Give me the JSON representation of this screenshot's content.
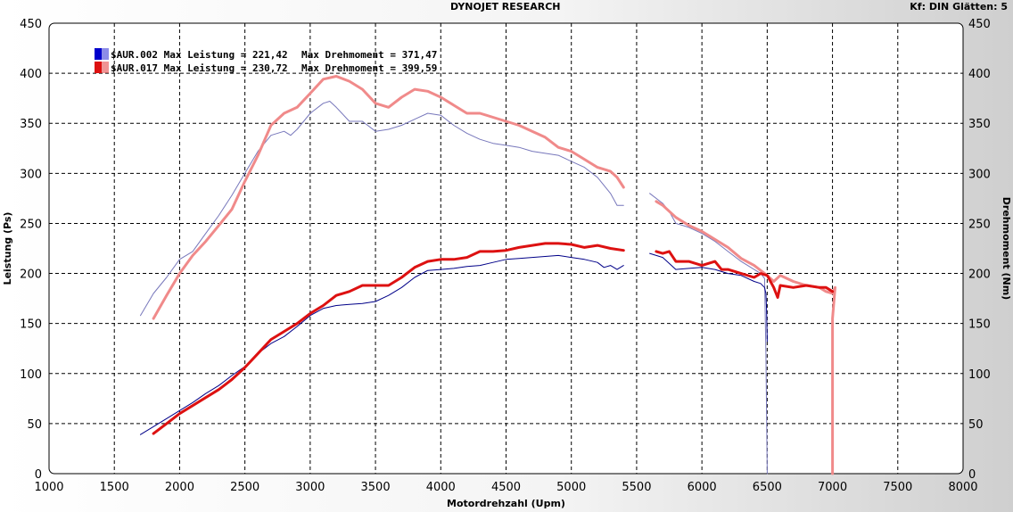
{
  "header": {
    "title": "DYNOJET RESEARCH",
    "right_info": "Kf: DIN  Glätten: 5"
  },
  "chart_data": {
    "type": "line",
    "title": "DYNOJET RESEARCH",
    "xlabel": "Motordrehzahl (Upm)",
    "ylabel_left": "Leistung (Ps)",
    "ylabel_right": "Drehmoment (Nm)",
    "xlim": [
      1000,
      8000
    ],
    "ylim": [
      0,
      450
    ],
    "x_ticks": [
      1000,
      1500,
      2000,
      2500,
      3000,
      3500,
      4000,
      4500,
      5000,
      5500,
      6000,
      6500,
      7000,
      7500,
      8000
    ],
    "y_ticks": [
      0,
      50,
      100,
      150,
      200,
      250,
      300,
      350,
      400,
      450
    ],
    "grid": true,
    "legend": [
      {
        "label": "$AUR.002 Max Leistung = 221,42",
        "label2": "Max Drehmoment = 371,47",
        "color": "#0000cc"
      },
      {
        "label": "$AUR.017 Max Leistung = 230,72",
        "label2": "Max Drehmoment = 399,59",
        "color": "#dd1111"
      }
    ],
    "series": [
      {
        "name": "$AUR.002",
        "quantity": "Drehmoment",
        "color": "#7777bb",
        "width": 1,
        "points": [
          [
            1700,
            158
          ],
          [
            1800,
            180
          ],
          [
            1900,
            196
          ],
          [
            2000,
            214
          ],
          [
            2100,
            222
          ],
          [
            2200,
            240
          ],
          [
            2300,
            258
          ],
          [
            2400,
            278
          ],
          [
            2500,
            300
          ],
          [
            2600,
            322
          ],
          [
            2700,
            338
          ],
          [
            2800,
            342
          ],
          [
            2850,
            338
          ],
          [
            2900,
            344
          ],
          [
            3000,
            360
          ],
          [
            3100,
            370
          ],
          [
            3150,
            372
          ],
          [
            3200,
            366
          ],
          [
            3300,
            352
          ],
          [
            3400,
            352
          ],
          [
            3500,
            342
          ],
          [
            3600,
            344
          ],
          [
            3700,
            348
          ],
          [
            3800,
            354
          ],
          [
            3900,
            360
          ],
          [
            4000,
            358
          ],
          [
            4100,
            348
          ],
          [
            4200,
            340
          ],
          [
            4300,
            334
          ],
          [
            4400,
            330
          ],
          [
            4500,
            328
          ],
          [
            4600,
            326
          ],
          [
            4700,
            322
          ],
          [
            4800,
            320
          ],
          [
            4900,
            318
          ],
          [
            5000,
            312
          ],
          [
            5100,
            306
          ],
          [
            5200,
            296
          ],
          [
            5300,
            280
          ],
          [
            5350,
            268
          ],
          [
            5400,
            268
          ]
        ]
      },
      {
        "name": "$AUR.002",
        "quantity": "Drehmoment",
        "color": "#7777bb",
        "width": 1,
        "points": [
          [
            5600,
            280
          ],
          [
            5700,
            270
          ],
          [
            5750,
            262
          ],
          [
            5800,
            250
          ],
          [
            5900,
            246
          ],
          [
            6000,
            240
          ],
          [
            6100,
            232
          ],
          [
            6200,
            222
          ],
          [
            6300,
            212
          ],
          [
            6400,
            204
          ],
          [
            6450,
            200
          ],
          [
            6480,
            195
          ],
          [
            6490,
            120
          ],
          [
            6500,
            0
          ]
        ]
      },
      {
        "name": "$AUR.002",
        "quantity": "Leistung",
        "color": "#000088",
        "width": 1,
        "points": [
          [
            1700,
            39
          ],
          [
            1800,
            47
          ],
          [
            1900,
            55
          ],
          [
            2000,
            63
          ],
          [
            2100,
            71
          ],
          [
            2200,
            80
          ],
          [
            2300,
            88
          ],
          [
            2400,
            98
          ],
          [
            2500,
            107
          ],
          [
            2600,
            120
          ],
          [
            2700,
            130
          ],
          [
            2800,
            137
          ],
          [
            2900,
            147
          ],
          [
            3000,
            158
          ],
          [
            3100,
            165
          ],
          [
            3200,
            168
          ],
          [
            3300,
            169
          ],
          [
            3400,
            170
          ],
          [
            3500,
            172
          ],
          [
            3600,
            178
          ],
          [
            3700,
            186
          ],
          [
            3800,
            196
          ],
          [
            3900,
            203
          ],
          [
            4000,
            204
          ],
          [
            4100,
            205
          ],
          [
            4200,
            207
          ],
          [
            4300,
            208
          ],
          [
            4400,
            211
          ],
          [
            4500,
            214
          ],
          [
            4600,
            215
          ],
          [
            4700,
            216
          ],
          [
            4800,
            217
          ],
          [
            4900,
            218
          ],
          [
            5000,
            216
          ],
          [
            5100,
            214
          ],
          [
            5200,
            211
          ],
          [
            5250,
            206
          ],
          [
            5300,
            208
          ],
          [
            5350,
            204
          ],
          [
            5400,
            208
          ]
        ]
      },
      {
        "name": "$AUR.002",
        "quantity": "Leistung",
        "color": "#000088",
        "width": 1,
        "points": [
          [
            5600,
            220
          ],
          [
            5700,
            216
          ],
          [
            5800,
            204
          ],
          [
            5900,
            205
          ],
          [
            6000,
            206
          ],
          [
            6100,
            204
          ],
          [
            6200,
            200
          ],
          [
            6300,
            198
          ],
          [
            6400,
            192
          ],
          [
            6450,
            190
          ],
          [
            6480,
            186
          ],
          [
            6490,
            180
          ],
          [
            6495,
            165
          ],
          [
            6500,
            132
          ]
        ]
      },
      {
        "name": "$AUR.017",
        "quantity": "Drehmoment",
        "color": "#f08a8a",
        "width": 3,
        "points": [
          [
            1800,
            155
          ],
          [
            1900,
            178
          ],
          [
            2000,
            200
          ],
          [
            2100,
            218
          ],
          [
            2200,
            232
          ],
          [
            2300,
            248
          ],
          [
            2400,
            264
          ],
          [
            2500,
            292
          ],
          [
            2600,
            318
          ],
          [
            2700,
            348
          ],
          [
            2800,
            360
          ],
          [
            2900,
            366
          ],
          [
            3000,
            380
          ],
          [
            3100,
            394
          ],
          [
            3200,
            397
          ],
          [
            3300,
            392
          ],
          [
            3400,
            384
          ],
          [
            3500,
            370
          ],
          [
            3600,
            366
          ],
          [
            3700,
            376
          ],
          [
            3800,
            384
          ],
          [
            3900,
            382
          ],
          [
            4000,
            376
          ],
          [
            4100,
            368
          ],
          [
            4200,
            360
          ],
          [
            4300,
            360
          ],
          [
            4400,
            356
          ],
          [
            4500,
            352
          ],
          [
            4600,
            348
          ],
          [
            4700,
            342
          ],
          [
            4800,
            336
          ],
          [
            4900,
            326
          ],
          [
            5000,
            322
          ],
          [
            5100,
            314
          ],
          [
            5200,
            306
          ],
          [
            5300,
            302
          ],
          [
            5350,
            296
          ],
          [
            5400,
            286
          ]
        ]
      },
      {
        "name": "$AUR.017",
        "quantity": "Drehmoment",
        "color": "#f08a8a",
        "width": 3,
        "points": [
          [
            5650,
            272
          ],
          [
            5700,
            268
          ],
          [
            5800,
            256
          ],
          [
            5900,
            248
          ],
          [
            6000,
            242
          ],
          [
            6100,
            234
          ],
          [
            6200,
            226
          ],
          [
            6300,
            215
          ],
          [
            6400,
            208
          ],
          [
            6500,
            198
          ],
          [
            6550,
            192
          ],
          [
            6600,
            198
          ],
          [
            6700,
            192
          ],
          [
            6800,
            188
          ],
          [
            6900,
            186
          ],
          [
            6950,
            182
          ],
          [
            7000,
            180
          ],
          [
            7020,
            186
          ],
          [
            7000,
            155
          ],
          [
            7000,
            60
          ],
          [
            7000,
            0
          ]
        ]
      },
      {
        "name": "$AUR.017",
        "quantity": "Leistung",
        "color": "#dd1111",
        "width": 3,
        "points": [
          [
            1800,
            40
          ],
          [
            1900,
            50
          ],
          [
            2000,
            60
          ],
          [
            2100,
            68
          ],
          [
            2200,
            76
          ],
          [
            2300,
            84
          ],
          [
            2400,
            94
          ],
          [
            2500,
            106
          ],
          [
            2600,
            120
          ],
          [
            2700,
            134
          ],
          [
            2800,
            142
          ],
          [
            2900,
            150
          ],
          [
            3000,
            160
          ],
          [
            3100,
            168
          ],
          [
            3200,
            178
          ],
          [
            3300,
            182
          ],
          [
            3400,
            188
          ],
          [
            3500,
            188
          ],
          [
            3600,
            188
          ],
          [
            3700,
            196
          ],
          [
            3800,
            206
          ],
          [
            3900,
            212
          ],
          [
            4000,
            214
          ],
          [
            4100,
            214
          ],
          [
            4200,
            216
          ],
          [
            4300,
            222
          ],
          [
            4400,
            222
          ],
          [
            4500,
            223
          ],
          [
            4600,
            226
          ],
          [
            4700,
            228
          ],
          [
            4800,
            230
          ],
          [
            4900,
            230
          ],
          [
            5000,
            229
          ],
          [
            5100,
            226
          ],
          [
            5200,
            228
          ],
          [
            5300,
            225
          ],
          [
            5400,
            223
          ]
        ]
      },
      {
        "name": "$AUR.017",
        "quantity": "Leistung",
        "color": "#dd1111",
        "width": 3,
        "points": [
          [
            5650,
            222
          ],
          [
            5700,
            220
          ],
          [
            5750,
            222
          ],
          [
            5800,
            212
          ],
          [
            5900,
            212
          ],
          [
            6000,
            208
          ],
          [
            6100,
            212
          ],
          [
            6150,
            204
          ],
          [
            6200,
            204
          ],
          [
            6300,
            200
          ],
          [
            6400,
            196
          ],
          [
            6450,
            200
          ],
          [
            6500,
            198
          ],
          [
            6550,
            186
          ],
          [
            6580,
            176
          ],
          [
            6600,
            188
          ],
          [
            6700,
            186
          ],
          [
            6800,
            188
          ],
          [
            6900,
            186
          ],
          [
            6950,
            186
          ],
          [
            7000,
            182
          ]
        ]
      }
    ]
  }
}
